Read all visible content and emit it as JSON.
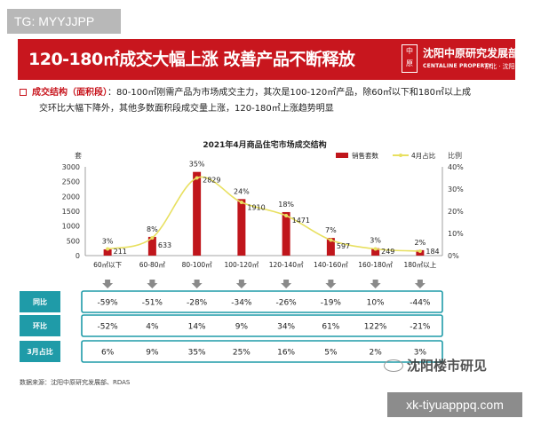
{
  "watermarks": {
    "top_left": "TG: MYYJJPP",
    "bottom_right": "xk-tiyuapppq.com",
    "wechat_account": "沈阳楼市研见"
  },
  "banner": {
    "title": "120-180㎡成交大幅上涨 改善产品不断释放",
    "logo_mark": [
      "中",
      "原"
    ],
    "brand_cn": "沈阳中原研究发展部",
    "brand_en": "CENTALINE PROPERTY",
    "brand_city": "东北 · 沈阳",
    "bg_color": "#c8161e"
  },
  "bullet": {
    "head": "成交结构（面积段）",
    "line1": "：80-100㎡刚需产品为市场成交主力，其次是100-120㎡产品，除60㎡以下和180㎡以上成",
    "line2": "交环比大幅下降外，其他多数面积段成交量上涨，120-180㎡上涨趋势明显"
  },
  "chart_data": {
    "type": "bar",
    "title": "2021年4月商品住宅市场成交结构",
    "left_axis_unit": "套",
    "right_axis_unit": "比例",
    "categories": [
      "60㎡以下",
      "60-80㎡",
      "80-100㎡",
      "100-120㎡",
      "120-140㎡",
      "140-160㎡",
      "160-180㎡",
      "180㎡以上"
    ],
    "series": [
      {
        "name": "销售套数",
        "kind": "bar",
        "axis": "left",
        "color": "#c0161c",
        "values": [
          211,
          633,
          2829,
          1910,
          1471,
          597,
          249,
          184
        ]
      },
      {
        "name": "4月占比",
        "kind": "line",
        "axis": "right",
        "color": "#e8e060",
        "values": [
          3,
          8,
          35,
          24,
          18,
          7,
          3,
          2
        ],
        "labels": [
          "3%",
          "8%",
          "35%",
          "24%",
          "18%",
          "7%",
          "3%",
          "2%"
        ]
      }
    ],
    "ylim_left": [
      0,
      3000
    ],
    "yticks_left": [
      "0",
      "500",
      "1000",
      "1500",
      "2000",
      "2500",
      "3000"
    ],
    "ylim_right": [
      0,
      40
    ],
    "yticks_right": [
      "0%",
      "10%",
      "20%",
      "30%",
      "40%"
    ],
    "grid": false,
    "legend_position": "top-right",
    "bar_labels": [
      "211",
      "633",
      "2829",
      "1910",
      "1471",
      "597",
      "249",
      "184"
    ],
    "table": {
      "rows": [
        {
          "label": "同比",
          "values": [
            "-59%",
            "-51%",
            "-28%",
            "-34%",
            "-26%",
            "-19%",
            "10%",
            "-44%"
          ]
        },
        {
          "label": "环比",
          "values": [
            "-52%",
            "4%",
            "14%",
            "9%",
            "34%",
            "61%",
            "122%",
            "-21%"
          ]
        },
        {
          "label": "3月占比",
          "values": [
            "6%",
            "9%",
            "35%",
            "25%",
            "16%",
            "5%",
            "2%",
            "3%"
          ]
        }
      ],
      "header_color": "#1f9ba8"
    }
  },
  "source": "数据来源：沈阳中原研究发展部、RDAS"
}
